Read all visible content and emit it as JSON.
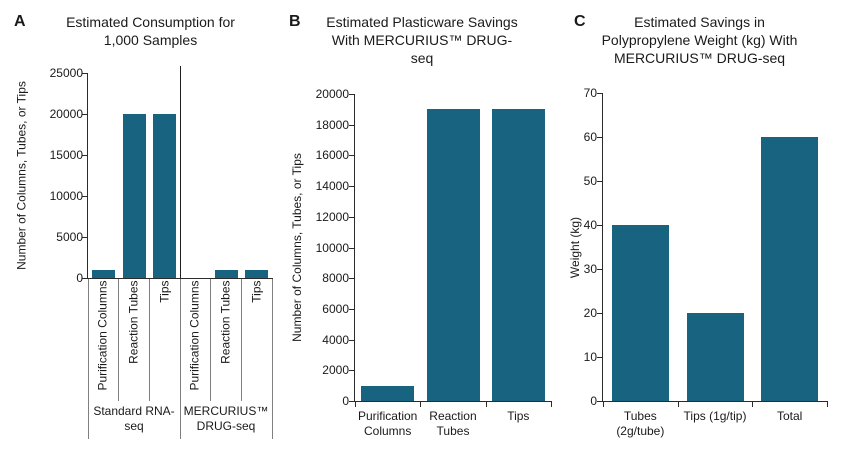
{
  "figure": {
    "background": "#ffffff",
    "text_color": "#1a1a1a",
    "bar_color": "#18637f",
    "axis_color": "#2b2b2b",
    "divider_color": "#7f7f7f",
    "separator_color": "#1f1f1f"
  },
  "chart_data": [
    {
      "id": "A",
      "panel_letter": "A",
      "type": "bar",
      "title": "Estimated Consumption for 1,000 Samples",
      "title_lines": [
        "Estimated Consumption for",
        "1,000 Samples"
      ],
      "ylabel": "Number of Columns, Tubes, or Tips",
      "ylim": [
        0,
        25000
      ],
      "ytick_step": 5000,
      "grid": false,
      "legend": false,
      "groups": [
        {
          "label": "Standard RNA-seq",
          "label_lines": [
            "Standard RNA-",
            "seq"
          ],
          "categories": [
            "Purification Columns",
            "Reaction Tubes",
            "Tips"
          ],
          "values": [
            1000,
            20000,
            20000
          ]
        },
        {
          "label": "MERCURIUS™ DRUG-seq",
          "label_lines": [
            "MERCURIUS™",
            "DRUG-seq"
          ],
          "categories": [
            "Purification Columns",
            "Reaction Tubes",
            "Tips"
          ],
          "values": [
            0,
            1000,
            1000
          ]
        }
      ]
    },
    {
      "id": "B",
      "panel_letter": "B",
      "type": "bar",
      "title": "Estimated Plasticware Savings With MERCURIUS™ DRUG-seq",
      "title_lines": [
        "Estimated Plasticware Savings",
        "With MERCURIUS™ DRUG-",
        "seq"
      ],
      "ylabel": "Number of Columns, Tubes, or Tips",
      "ylim": [
        0,
        20000
      ],
      "ytick_step": 2000,
      "grid": false,
      "legend": false,
      "categories": [
        "Purification Columns",
        "Reaction Tubes",
        "Tips"
      ],
      "category_lines": [
        [
          "Purification",
          "Columns"
        ],
        [
          "Reaction",
          "Tubes"
        ],
        [
          "Tips"
        ]
      ],
      "values": [
        1000,
        19000,
        19000
      ]
    },
    {
      "id": "C",
      "panel_letter": "C",
      "type": "bar",
      "title": "Estimated Savings in Polypropylene Weight (kg) With MERCURIUS™ DRUG-seq",
      "title_lines": [
        "Estimated Savings in",
        "Polypropylene Weight (kg) With",
        "MERCURIUS™ DRUG-seq"
      ],
      "ylabel": "Weight (kg)",
      "ylim": [
        0,
        70
      ],
      "ytick_step": 10,
      "grid": false,
      "legend": false,
      "categories": [
        "Tubes (2g/tube)",
        "Tips (1g/tip)",
        "Total"
      ],
      "category_lines": [
        [
          "Tubes",
          "(2g/tube)"
        ],
        [
          "Tips (1g/tip)"
        ],
        [
          "Total"
        ]
      ],
      "values": [
        40,
        20,
        60
      ]
    }
  ]
}
